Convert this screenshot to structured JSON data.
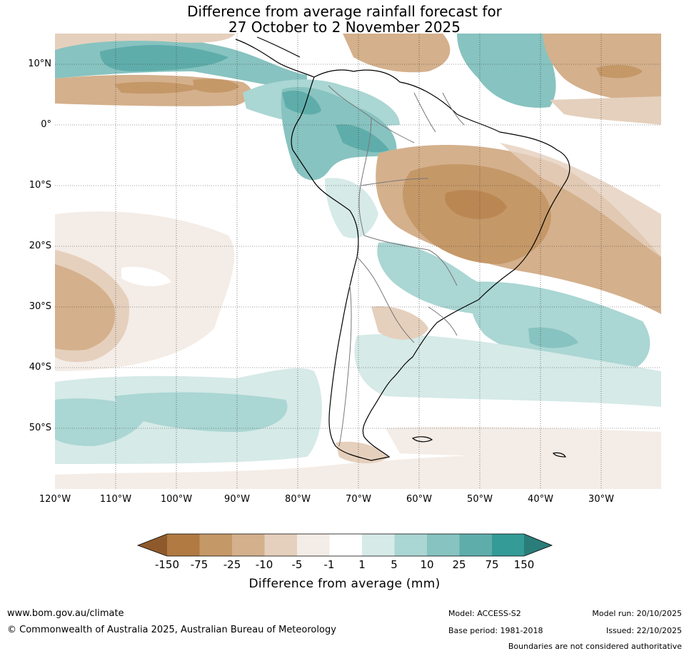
{
  "title": {
    "line1": "Difference from average rainfall forecast for",
    "line2": "27 October to 2 November 2025"
  },
  "axes": {
    "lat_labels": [
      "10°N",
      "0°",
      "10°S",
      "20°S",
      "30°S",
      "40°S",
      "50°S"
    ],
    "lon_labels": [
      "120°W",
      "110°W",
      "100°W",
      "90°W",
      "80°W",
      "70°W",
      "60°W",
      "50°W",
      "40°W",
      "30°W"
    ]
  },
  "legend": {
    "title": "Difference from average (mm)",
    "ticks": [
      "-150",
      "-75",
      "-25",
      "-10",
      "-5",
      "-1",
      "1",
      "5",
      "10",
      "25",
      "75",
      "150"
    ],
    "colors": [
      "#8f5a2b",
      "#b07a42",
      "#c59868",
      "#d4b08c",
      "#e5d0bd",
      "#f4ece6",
      "#ffffff",
      "#d6eae8",
      "#aad6d3",
      "#87c3c0",
      "#5fadab",
      "#349b96",
      "#2a7d79"
    ]
  },
  "footer": {
    "url": "www.bom.gov.au/climate",
    "copyright": "© Commonwealth of Australia 2025, Australian Bureau of Meteorology",
    "model": "Model: ACCESS-S2",
    "base_period": "Base period: 1981-2018",
    "model_run": "Model run: 20/10/2025",
    "issued": "Issued: 22/10/2025",
    "boundaries": "Boundaries are not considered authoritative"
  }
}
